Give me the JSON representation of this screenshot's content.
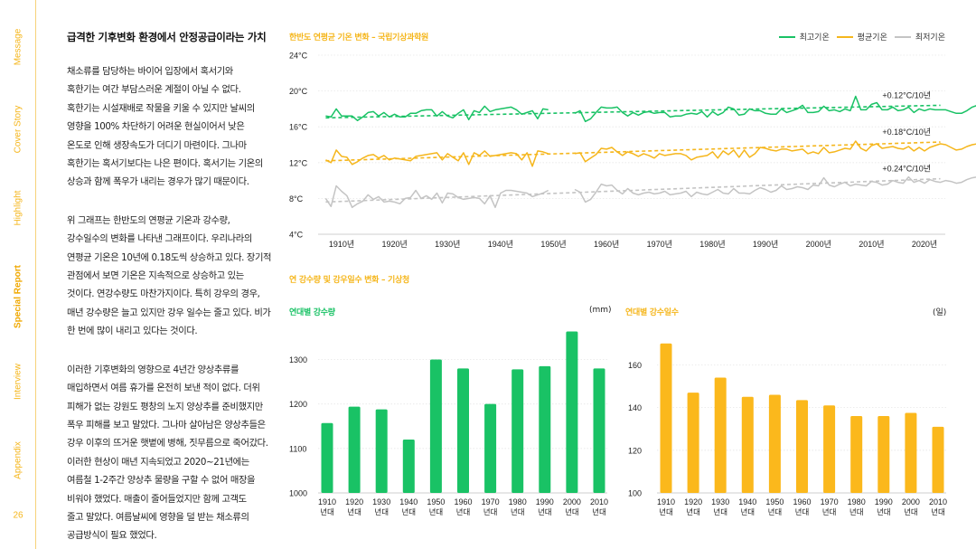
{
  "side_nav": {
    "items": [
      {
        "label": "Message",
        "active": false
      },
      {
        "label": "Cover Story",
        "active": false
      },
      {
        "label": "Highlight",
        "active": false
      },
      {
        "label": "Special Report",
        "active": true
      },
      {
        "label": "Interview",
        "active": false
      },
      {
        "label": "Appendix",
        "active": false
      }
    ],
    "page_number": "26"
  },
  "article": {
    "title": "급격한 기후변화 환경에서 안정공급이라는 가치",
    "paragraphs": [
      "채소류를 담당하는 바이어 입장에서 혹서기와\n혹한기는 여간 부담스러운 계절이 아닐 수 없다.\n혹한기는 시설재배로 작물을 키울 수 있지만 날씨의\n영향을 100% 차단하기 어려운 현실이어서 낮은\n온도로 인해 생장속도가 더디기 마련이다. 그나마\n혹한기는 혹서기보다는 나은 편이다. 혹서기는 기온의\n상승과 함께 폭우가 내리는 경우가 많기 때문이다.",
      "위 그래프는 한반도의 연평균 기온과 강수량,\n강수일수의 변화를 나타낸 그래프이다. 우리나라의\n연평균 기온은 10년에 0.18도씩 상승하고 있다. 장기적\n관점에서 보면 기온은 지속적으로 상승하고 있는\n것이다. 연강수량도 마찬가지이다. 특히 강우의 경우,\n매년 강수량은 늘고 있지만 강우 일수는 줄고 있다. 비가\n한 번에 많이 내리고 있다는 것이다.",
      "이러한 기후변화의 영향으로 4년간 양상추류를\n매입하면서 여름 휴가를 온전히 보낸 적이 없다. 더위\n피해가 없는 강원도 평창의 노지 양상추를 준비했지만\n폭우 피해를 보고 말았다. 그나마 살아남은 양상추들은\n강우 이후의 뜨거운 햇볕에 병해, 짓무름으로 죽어갔다.\n이러한 현상이 매년 지속되었고 2020~21년에는\n여름철 1-2주간 양상추 물량을 구할 수 없어 매장을\n비워야 했었다. 매출이 줄어들었지만 함께 고객도\n줄고 말았다. 여름날씨에 영향을 덜 받는 채소류의\n공급방식이 필요 했었다."
    ]
  },
  "colors": {
    "accent_orange": "#f5b61c",
    "green": "#19c265",
    "gray": "#c4c4c4",
    "nav_line": "#f6d27a"
  },
  "chart_data": [
    {
      "type": "line",
      "title": "한반도 연평균 기온 변화 – 국립기상과학원",
      "xlabel": "",
      "ylabel": "",
      "ylim": [
        4,
        24
      ],
      "yticks": [
        4,
        8,
        12,
        16,
        20,
        24
      ],
      "ytick_labels": [
        "4°C",
        "8°C",
        "12°C",
        "16°C",
        "20°C",
        "24°C"
      ],
      "xlim": [
        1905,
        2026
      ],
      "xticks": [
        1910,
        1920,
        1930,
        1940,
        1950,
        1960,
        1970,
        1980,
        1990,
        2000,
        2010,
        2020
      ],
      "xtick_labels": [
        "1910년",
        "1920년",
        "1930년",
        "1940년",
        "1950년",
        "1960년",
        "1970년",
        "1980년",
        "1990년",
        "2000년",
        "2010년",
        "2020년"
      ],
      "grid": true,
      "legend": "top-right",
      "series": [
        {
          "name": "최고기온",
          "color": "#19c265",
          "trend_label": "+0.12°C/10년",
          "trend": [
            [
              1907,
              17.0
            ],
            [
              2023,
              18.4
            ]
          ],
          "segments": [
            {
              "x_start": 1907,
              "values": [
                17.2,
                17.1,
                18.0,
                17.2,
                17.2,
                17.2,
                16.7,
                17.1,
                17.6,
                17.7,
                17.2,
                17.6,
                17.1,
                17.4,
                17.1,
                17.1,
                17.5,
                17.5,
                17.8,
                17.9,
                17.9,
                17.2,
                17.7,
                17.2,
                17.0,
                17.5,
                17.9,
                16.8,
                17.8,
                17.6,
                18.3,
                17.7,
                17.9,
                18.0,
                18.1,
                18.2,
                17.9,
                17.4,
                17.6,
                17.8,
                16.9,
                18.0,
                17.9
              ]
            },
            {
              "x_start": 1954,
              "values": [
                17.5,
                17.8,
                16.6,
                16.9,
                17.6,
                18.2,
                18.1,
                18.1,
                18.2,
                17.6,
                17.2,
                17.6,
                17.3,
                17.6,
                17.7,
                17.5,
                17.6,
                17.6,
                17.1,
                17.2,
                17.2,
                17.4,
                17.5,
                17.4,
                17.7,
                17.1,
                17.7,
                17.3,
                17.6,
                18.2,
                18.0,
                17.3,
                17.4,
                18.0,
                17.8,
                17.8,
                17.5,
                17.4,
                17.4,
                18.0,
                17.6,
                17.8,
                18.0,
                18.4,
                17.6,
                17.6,
                17.7,
                18.3,
                17.8,
                17.9,
                17.7,
                18.0,
                17.8,
                19.4,
                17.9,
                17.9,
                18.5,
                18.7,
                17.9,
                17.9,
                18.2,
                17.8,
                17.9,
                18.2,
                17.6,
                18.0,
                17.8,
                18.0,
                17.9,
                17.9,
                17.9,
                17.7,
                17.5,
                17.5,
                17.8,
                18.2,
                18.4,
                18.5,
                18.5,
                18.2
              ]
            }
          ]
        },
        {
          "name": "평균기온",
          "color": "#f5b61c",
          "trend_label": "+0.18°C/10년",
          "trend": [
            [
              1907,
              12.2
            ],
            [
              2023,
              14.3
            ]
          ],
          "segments": [
            {
              "x_start": 1907,
              "values": [
                12.3,
                12.0,
                13.4,
                12.7,
                12.6,
                11.8,
                12.1,
                12.5,
                12.8,
                12.9,
                12.5,
                12.8,
                12.3,
                12.5,
                12.4,
                12.3,
                12.2,
                12.7,
                12.8,
                12.9,
                13.0,
                13.1,
                12.3,
                13.0,
                12.6,
                12.2,
                13.1,
                11.8,
                13.1,
                12.8,
                13.3,
                12.7,
                12.8,
                12.9,
                13.0,
                13.1,
                13.0,
                12.3,
                13.1,
                11.6,
                13.3,
                13.2,
                13.0
              ]
            },
            {
              "x_start": 1954,
              "values": [
                13.0,
                13.1,
                12.1,
                12.5,
                12.9,
                13.6,
                13.5,
                13.7,
                13.2,
                12.8,
                13.2,
                13.0,
                12.7,
                13.0,
                12.8,
                12.5,
                13.0,
                12.8,
                12.9,
                13.0,
                13.0,
                12.8,
                12.3,
                12.6,
                12.7,
                12.8,
                13.2,
                12.5,
                13.3,
                12.9,
                13.4,
                12.6,
                13.4,
                12.6,
                13.0,
                13.7,
                13.6,
                13.4,
                13.3,
                13.5,
                13.5,
                13.3,
                13.4,
                13.5,
                13.0,
                13.2,
                13.0,
                13.7,
                13.1,
                13.2,
                13.4,
                13.6,
                13.5,
                14.4,
                13.6,
                13.3,
                13.9,
                14.1,
                13.6,
                13.7,
                13.8,
                13.6,
                13.5,
                13.8,
                13.3,
                13.7,
                13.3,
                13.7,
                13.9,
                14.1,
                14.0,
                13.7,
                13.4,
                13.5,
                13.8,
                14.0,
                14.1,
                14.3,
                14.5,
                14.2
              ]
            }
          ]
        },
        {
          "name": "최저기온",
          "color": "#c4c4c4",
          "trend_label": "+0.24°C/10년",
          "trend": [
            [
              1907,
              7.6
            ],
            [
              2023,
              10.2
            ]
          ],
          "segments": [
            {
              "x_start": 1907,
              "values": [
                8.0,
                7.1,
                9.4,
                8.8,
                8.3,
                7.0,
                7.4,
                7.7,
                8.4,
                7.9,
                8.2,
                7.6,
                7.7,
                7.6,
                7.4,
                8.0,
                8.1,
                8.9,
                8.0,
                8.3,
                7.9,
                8.6,
                7.5,
                8.6,
                8.5,
                8.1,
                7.9,
                8.0,
                8.1,
                8.0,
                7.4,
                8.3,
                7.0,
                8.6,
                8.9,
                8.9,
                8.8,
                8.7,
                8.6,
                8.2,
                8.4,
                8.6,
                8.9
              ]
            },
            {
              "x_start": 1954,
              "values": [
                9.0,
                8.7,
                7.6,
                7.9,
                8.7,
                9.6,
                9.4,
                9.5,
                8.9,
                8.5,
                9.1,
                8.6,
                8.4,
                8.6,
                8.7,
                8.5,
                8.6,
                8.8,
                8.4,
                8.5,
                8.6,
                8.8,
                8.2,
                8.7,
                8.5,
                8.4,
                8.7,
                9.0,
                8.6,
                8.5,
                9.1,
                8.6,
                8.6,
                8.5,
                8.9,
                9.2,
                9.0,
                8.7,
                8.9,
                9.4,
                9.0,
                9.1,
                9.3,
                9.2,
                9.0,
                9.5,
                9.4,
                10.3,
                9.5,
                9.3,
                9.6,
                9.8,
                9.4,
                9.6,
                9.5,
                9.4,
                9.9,
                9.8,
                9.5,
                9.6,
                10.0,
                9.8,
                9.7,
                10.4,
                9.8,
                10.0,
                9.7,
                10.1,
                9.9,
                9.8,
                10.0,
                9.9,
                9.7,
                9.8,
                10.1,
                10.3,
                10.4,
                10.5,
                10.4,
                10.2
              ]
            }
          ]
        }
      ]
    },
    {
      "type": "bar",
      "title": "연대별 강수량",
      "section_title": "연 강수량 및 강우일수 변화 – 기상청",
      "unit_label": "(mm)",
      "color": "#19c265",
      "categories": [
        "1910\n년대",
        "1920\n년대",
        "1930\n년대",
        "1940\n년대",
        "1950\n년대",
        "1960\n년대",
        "1970\n년대",
        "1980\n년대",
        "1990\n년대",
        "2000\n년대",
        "2010\n년대"
      ],
      "values": [
        1157,
        1194,
        1188,
        1120,
        1300,
        1280,
        1200,
        1278,
        1285,
        1363,
        1280
      ],
      "ylim": [
        1000,
        1360
      ],
      "yticks": [
        1000,
        1100,
        1200,
        1300
      ],
      "ytick_labels": [
        "1000",
        "1100",
        "1200",
        "1300"
      ],
      "grid": true
    },
    {
      "type": "bar",
      "title": "연대별 강수일수",
      "unit_label": "(일)",
      "color": "#fbb81c",
      "categories": [
        "1910\n년대",
        "1920\n년대",
        "1930\n년대",
        "1940\n년대",
        "1950\n년대",
        "1960\n년대",
        "1970\n년대",
        "1980\n년대",
        "1990\n년대",
        "2000\n년대",
        "2010\n년대"
      ],
      "values": [
        170,
        147,
        154,
        145,
        146,
        143.5,
        141,
        136,
        136,
        137.5,
        131
      ],
      "ylim": [
        100,
        175
      ],
      "yticks": [
        100,
        120,
        140,
        160
      ],
      "ytick_labels": [
        "100",
        "120",
        "140",
        "160"
      ],
      "grid": true
    }
  ]
}
